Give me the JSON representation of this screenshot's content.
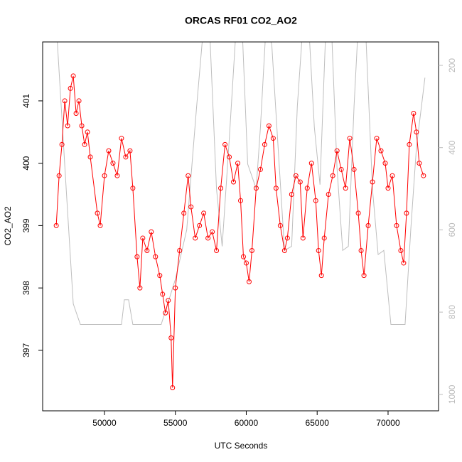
{
  "chart_data": {
    "type": "line",
    "title": "ORCAS RF01 CO2_AO2",
    "xlabel": "UTC Seconds",
    "ylabel": "CO2_AO2",
    "xlim": [
      45640,
      73560
    ],
    "xticks": [
      50000,
      55000,
      60000,
      65000,
      70000
    ],
    "ylim": [
      396.03,
      401.945
    ],
    "yticks": [
      397,
      398,
      399,
      400,
      401
    ],
    "y2lim": [
      1040,
      143
    ],
    "y2ticks": [
      200,
      400,
      600,
      800,
      1000
    ],
    "series": [
      {
        "color": "#ff0000",
        "markers": true,
        "x": [
          46600,
          46800,
          47000,
          47200,
          47400,
          47600,
          47800,
          48000,
          48200,
          48400,
          48600,
          48800,
          49000,
          49500,
          49700,
          50000,
          50300,
          50600,
          50900,
          51200,
          51500,
          51800,
          52000,
          52300,
          52500,
          52700,
          53000,
          53300,
          53600,
          53900,
          54100,
          54300,
          54500,
          54700,
          54800,
          55000,
          55300,
          55600,
          55900,
          56100,
          56400,
          56700,
          57000,
          57300,
          57600,
          57900,
          58200,
          58500,
          58800,
          59100,
          59400,
          59600,
          59800,
          60000,
          60200,
          60400,
          60700,
          61000,
          61300,
          61600,
          61900,
          62100,
          62400,
          62700,
          62900,
          63200,
          63500,
          63800,
          64000,
          64300,
          64600,
          64900,
          65100,
          65300,
          65500,
          65800,
          66100,
          66400,
          66700,
          67000,
          67300,
          67600,
          67900,
          68100,
          68300,
          68600,
          68900,
          69200,
          69500,
          69800,
          70000,
          70300,
          70600,
          70900,
          71100,
          71300,
          71500,
          71800,
          72000,
          72200,
          72500
        ],
        "values": [
          399.0,
          399.8,
          400.3,
          401.0,
          400.6,
          401.2,
          401.4,
          400.8,
          401.0,
          400.6,
          400.3,
          400.5,
          400.1,
          399.2,
          399.0,
          399.8,
          400.2,
          400.0,
          399.8,
          400.4,
          400.1,
          400.2,
          399.6,
          398.5,
          398.0,
          398.8,
          398.6,
          398.9,
          398.5,
          398.2,
          397.9,
          397.6,
          397.8,
          397.2,
          396.4,
          398.0,
          398.6,
          399.2,
          399.8,
          399.3,
          398.8,
          399.0,
          399.2,
          398.8,
          398.9,
          398.6,
          399.6,
          400.3,
          400.1,
          399.7,
          400.0,
          399.4,
          398.5,
          398.4,
          398.1,
          398.6,
          399.6,
          399.9,
          400.3,
          400.6,
          400.4,
          399.6,
          399.0,
          398.6,
          398.8,
          399.5,
          399.8,
          399.7,
          398.8,
          399.6,
          400.0,
          399.4,
          398.6,
          398.2,
          398.8,
          399.5,
          399.8,
          400.2,
          399.9,
          399.6,
          400.4,
          399.9,
          399.2,
          398.6,
          398.2,
          399.0,
          399.7,
          400.4,
          400.2,
          400.0,
          399.6,
          399.8,
          399.0,
          398.6,
          398.4,
          399.2,
          400.3,
          400.8,
          400.5,
          400.0,
          399.8
        ]
      },
      {
        "color": "#bebebe",
        "axis": "y2",
        "markers": false,
        "x": [
          46600,
          47300,
          47800,
          48300,
          51200,
          51400,
          51700,
          52000,
          54000,
          55000,
          55800,
          56500,
          57000,
          57400,
          57900,
          58300,
          58800,
          59300,
          59700,
          60100,
          60700,
          61000,
          61400,
          61800,
          62300,
          62700,
          63200,
          63600,
          64000,
          64400,
          64800,
          65200,
          65600,
          66000,
          66400,
          66800,
          67200,
          67600,
          67900,
          68400,
          68900,
          69300,
          69700,
          70200,
          70800,
          71200,
          71600,
          72000,
          72600
        ],
        "values": [
          100,
          500,
          780,
          830,
          830,
          770,
          770,
          830,
          830,
          720,
          600,
          300,
          100,
          100,
          500,
          640,
          380,
          100,
          100,
          440,
          500,
          350,
          100,
          150,
          430,
          650,
          640,
          300,
          100,
          100,
          350,
          490,
          120,
          100,
          450,
          650,
          640,
          300,
          100,
          100,
          500,
          660,
          650,
          830,
          830,
          830,
          600,
          400,
          230
        ]
      }
    ]
  }
}
